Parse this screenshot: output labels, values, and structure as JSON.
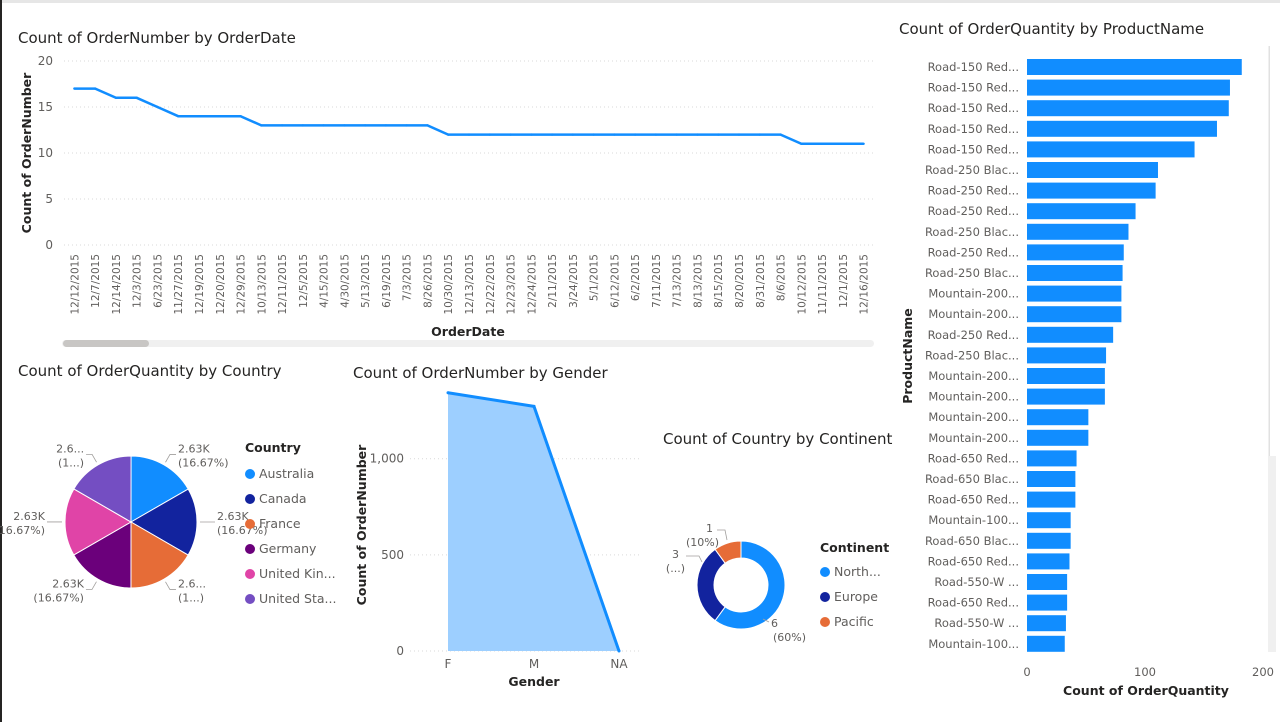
{
  "colors": {
    "accent": "#118DFF",
    "area_fill": "#9DCFFF",
    "grid": "#d9d9d9",
    "axis_text": "#605e5c",
    "title_text": "#252423"
  },
  "line_chart": {
    "title": "Count of OrderNumber by OrderDate",
    "xlabel": "OrderDate",
    "ylabel": "Count of OrderNumber"
  },
  "pie_chart": {
    "title": "Count of OrderQuantity by Country",
    "legend_title": "Country"
  },
  "area_chart": {
    "title": "Count of OrderNumber by Gender",
    "xlabel": "Gender",
    "ylabel": "Count of OrderNumber"
  },
  "donut_chart": {
    "title": "Count of Country by Continent",
    "legend_title": "Continent"
  },
  "bar_chart": {
    "title": "Count of OrderQuantity by ProductName",
    "xlabel": "Count of OrderQuantity",
    "ylabel": "ProductName"
  },
  "chart_data": [
    {
      "type": "line",
      "title": "Count of OrderNumber by OrderDate",
      "xlabel": "OrderDate",
      "ylabel": "Count of OrderNumber",
      "ylim": [
        0,
        20
      ],
      "yticks": [
        "0",
        "5",
        "10",
        "15",
        "20"
      ],
      "grid": true,
      "categories": [
        "12/12/2015",
        "12/7/2015",
        "12/14/2015",
        "12/3/2015",
        "6/23/2015",
        "11/27/2015",
        "12/19/2015",
        "12/20/2015",
        "12/29/2015",
        "10/13/2015",
        "12/11/2015",
        "12/5/2015",
        "4/15/2015",
        "4/30/2015",
        "5/13/2015",
        "6/19/2015",
        "7/3/2015",
        "8/26/2015",
        "10/30/2015",
        "12/13/2015",
        "12/22/2015",
        "12/23/2015",
        "12/24/2015",
        "2/11/2015",
        "3/24/2015",
        "5/1/2015",
        "6/12/2015",
        "6/2/2015",
        "7/11/2015",
        "7/13/2015",
        "8/13/2015",
        "8/15/2015",
        "8/20/2015",
        "8/31/2015",
        "8/6/2015",
        "10/12/2015",
        "11/11/2015",
        "12/1/2015",
        "12/16/2015"
      ],
      "values": [
        17,
        17,
        16,
        16,
        15,
        14,
        14,
        14,
        14,
        13,
        13,
        13,
        13,
        13,
        13,
        13,
        13,
        13,
        12,
        12,
        12,
        12,
        12,
        12,
        12,
        12,
        12,
        12,
        12,
        12,
        12,
        12,
        12,
        12,
        12,
        11,
        11,
        11,
        11
      ]
    },
    {
      "type": "pie",
      "title": "Count of OrderQuantity by Country",
      "legend_title": "Country",
      "legend": "right",
      "series": [
        {
          "name": "Australia",
          "label": "2.63K",
          "pct": "(16.67%)",
          "share": 0.1667,
          "color": "#118DFF"
        },
        {
          "name": "Canada",
          "label": "2.63K",
          "pct": "(16.67%)",
          "share": 0.1667,
          "color": "#12239E"
        },
        {
          "name": "France",
          "label": "2.6...",
          "pct": "(1...)",
          "share": 0.1667,
          "color": "#E66C37"
        },
        {
          "name": "Germany",
          "label": "2.63K",
          "pct": "(16.67%)",
          "share": 0.1667,
          "color": "#6B007B"
        },
        {
          "name": "United Kin...",
          "label": "2.63K",
          "pct": "(16.67%)",
          "share": 0.1667,
          "color": "#E044A7"
        },
        {
          "name": "United Sta...",
          "label": "2.6...",
          "pct": "(1...)",
          "share": 0.1667,
          "color": "#744EC2"
        }
      ]
    },
    {
      "type": "area",
      "title": "Count of OrderNumber by Gender",
      "xlabel": "Gender",
      "ylabel": "Count of OrderNumber",
      "ylim": [
        0,
        1300
      ],
      "yticks": [
        "0",
        "500",
        "1,000"
      ],
      "grid": true,
      "categories": [
        "F",
        "M",
        "NA"
      ],
      "values": [
        1343,
        1272,
        0
      ]
    },
    {
      "type": "pie",
      "subtype": "donut",
      "title": "Count of Country by Continent",
      "legend_title": "Continent",
      "legend": "right",
      "series": [
        {
          "name": "North...",
          "value": 6,
          "label": "6",
          "pct": "(60%)",
          "color": "#118DFF"
        },
        {
          "name": "Europe",
          "value": 3,
          "label": "3",
          "pct": "(...)",
          "color": "#12239E"
        },
        {
          "name": "Pacific",
          "value": 1,
          "label": "1",
          "pct": "(10%)",
          "color": "#E66C37"
        }
      ]
    },
    {
      "type": "bar",
      "orientation": "horizontal",
      "title": "Count of OrderQuantity by ProductName",
      "xlabel": "Count of OrderQuantity",
      "ylabel": "ProductName",
      "xlim": [
        0,
        200
      ],
      "xticks": [
        "0",
        "100",
        "200"
      ],
      "categories": [
        "Road-150 Red...",
        "Road-150 Red...",
        "Road-150 Red...",
        "Road-150 Red...",
        "Road-150 Red...",
        "Road-250 Blac...",
        "Road-250 Red...",
        "Road-250 Red...",
        "Road-250 Blac...",
        "Road-250 Red...",
        "Road-250 Blac...",
        "Mountain-200...",
        "Mountain-200...",
        "Road-250 Red...",
        "Road-250 Blac...",
        "Mountain-200...",
        "Mountain-200...",
        "Mountain-200...",
        "Mountain-200...",
        "Road-650 Red...",
        "Road-650 Blac...",
        "Road-650 Red...",
        "Mountain-100...",
        "Road-650 Blac...",
        "Road-650 Red...",
        "Road-550-W ...",
        "Road-650 Red...",
        "Road-550-W ...",
        "Mountain-100..."
      ],
      "values": [
        182,
        172,
        171,
        161,
        142,
        111,
        109,
        92,
        86,
        82,
        81,
        80,
        80,
        73,
        67,
        66,
        66,
        52,
        52,
        42,
        41,
        41,
        37,
        37,
        36,
        34,
        34,
        33,
        32
      ]
    }
  ]
}
